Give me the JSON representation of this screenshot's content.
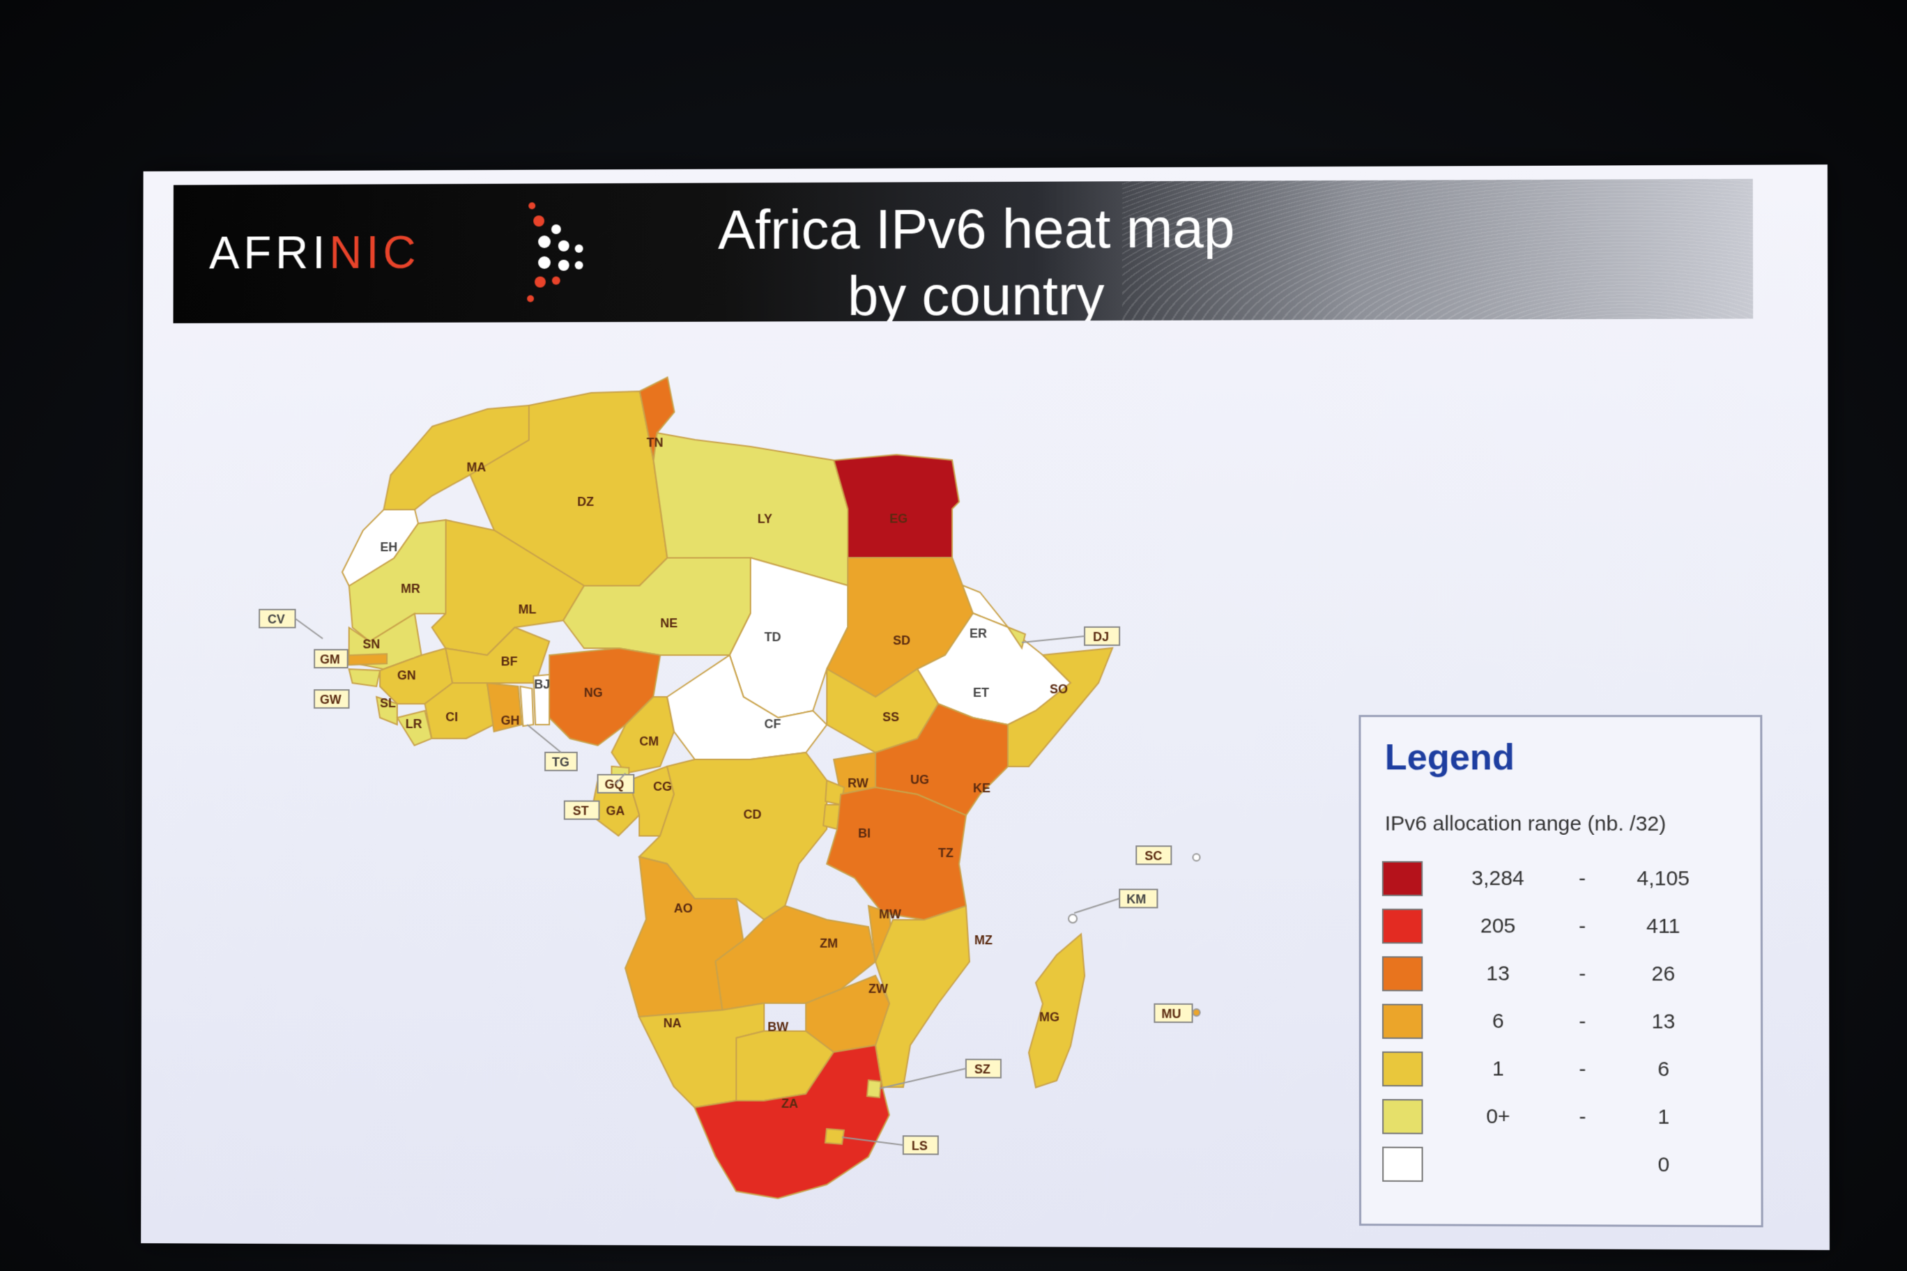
{
  "header": {
    "logo": {
      "part1": "AFRI",
      "part2": "NIC"
    },
    "title_line1": "Africa IPv6 heat map",
    "title_line2": "by country"
  },
  "colors": {
    "very_high": "#b5121b",
    "high": "#e32b22",
    "mid_high": "#e8741e",
    "mid": "#eba52a",
    "low": "#e9c73c",
    "very_low": "#e6e06a",
    "none": "#ffffff"
  },
  "countries": [
    {
      "code": "MA",
      "level": "low"
    },
    {
      "code": "DZ",
      "level": "low"
    },
    {
      "code": "TN",
      "level": "mid_high"
    },
    {
      "code": "LY",
      "level": "very_low"
    },
    {
      "code": "EG",
      "level": "very_high"
    },
    {
      "code": "EH",
      "level": "none"
    },
    {
      "code": "MR",
      "level": "very_low"
    },
    {
      "code": "ML",
      "level": "low"
    },
    {
      "code": "NE",
      "level": "very_low"
    },
    {
      "code": "TD",
      "level": "none"
    },
    {
      "code": "SD",
      "level": "mid"
    },
    {
      "code": "ER",
      "level": "none"
    },
    {
      "code": "DJ",
      "level": "very_low"
    },
    {
      "code": "ET",
      "level": "none"
    },
    {
      "code": "SO",
      "level": "low"
    },
    {
      "code": "CV",
      "level": "none"
    },
    {
      "code": "SN",
      "level": "very_low"
    },
    {
      "code": "GM",
      "level": "mid"
    },
    {
      "code": "GW",
      "level": "very_low"
    },
    {
      "code": "GN",
      "level": "low"
    },
    {
      "code": "SL",
      "level": "very_low"
    },
    {
      "code": "LR",
      "level": "very_low"
    },
    {
      "code": "CI",
      "level": "low"
    },
    {
      "code": "BF",
      "level": "low"
    },
    {
      "code": "GH",
      "level": "mid"
    },
    {
      "code": "TG",
      "level": "none"
    },
    {
      "code": "BJ",
      "level": "none"
    },
    {
      "code": "NG",
      "level": "mid_high"
    },
    {
      "code": "CM",
      "level": "low"
    },
    {
      "code": "CF",
      "level": "none"
    },
    {
      "code": "SS",
      "level": "low"
    },
    {
      "code": "GQ",
      "level": "very_low"
    },
    {
      "code": "ST",
      "level": "very_low"
    },
    {
      "code": "GA",
      "level": "low"
    },
    {
      "code": "CG",
      "level": "low"
    },
    {
      "code": "CD",
      "level": "low"
    },
    {
      "code": "RW",
      "level": "low"
    },
    {
      "code": "UG",
      "level": "mid"
    },
    {
      "code": "KE",
      "level": "mid_high"
    },
    {
      "code": "BI",
      "level": "low"
    },
    {
      "code": "TZ",
      "level": "mid_high"
    },
    {
      "code": "SC",
      "level": "low"
    },
    {
      "code": "KM",
      "level": "none"
    },
    {
      "code": "AO",
      "level": "mid"
    },
    {
      "code": "ZM",
      "level": "mid"
    },
    {
      "code": "MW",
      "level": "mid"
    },
    {
      "code": "MZ",
      "level": "low"
    },
    {
      "code": "ZW",
      "level": "mid"
    },
    {
      "code": "MG",
      "level": "low"
    },
    {
      "code": "MU",
      "level": "mid"
    },
    {
      "code": "NA",
      "level": "low"
    },
    {
      "code": "BW",
      "level": "low"
    },
    {
      "code": "SZ",
      "level": "very_low"
    },
    {
      "code": "ZA",
      "level": "high"
    },
    {
      "code": "LS",
      "level": "low"
    }
  ],
  "legend": {
    "title": "Legend",
    "subtitle": "IPv6 allocation range (nb. /32)",
    "rows": [
      {
        "min": "3,284",
        "sep": "-",
        "max": "4,105",
        "color": "#b5121b"
      },
      {
        "min": "205",
        "sep": "-",
        "max": "411",
        "color": "#e32b22"
      },
      {
        "min": "13",
        "sep": "-",
        "max": "26",
        "color": "#e8741e"
      },
      {
        "min": "6",
        "sep": "-",
        "max": "13",
        "color": "#eba52a"
      },
      {
        "min": "1",
        "sep": "-",
        "max": "6",
        "color": "#e9c73c"
      },
      {
        "min": "0+",
        "sep": "-",
        "max": "1",
        "color": "#e6e06a"
      },
      {
        "min": "",
        "sep": "",
        "max": "0",
        "color": "#ffffff"
      }
    ]
  }
}
